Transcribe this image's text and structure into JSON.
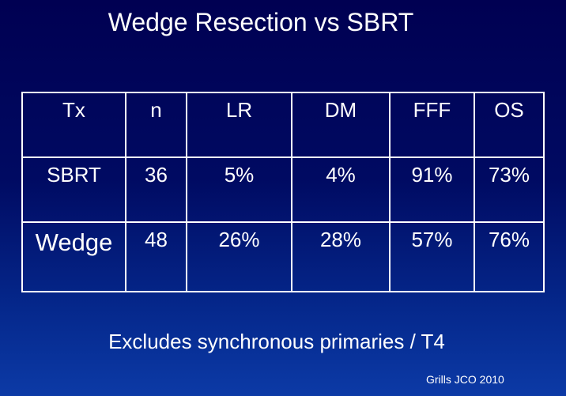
{
  "slide": {
    "title": "Wedge Resection vs SBRT",
    "footer_note": "Excludes synchronous primaries / T4",
    "citation": "Grills JCO 2010"
  },
  "table": {
    "headers": [
      "Tx",
      "n",
      "LR",
      "DM",
      "FFF",
      "OS"
    ],
    "rows": [
      [
        "SBRT",
        "36",
        "5%",
        "4%",
        "91%",
        "73%"
      ],
      [
        "Wedge",
        "48",
        "26%",
        "28%",
        "57%",
        "76%"
      ]
    ]
  },
  "colors": {
    "background_top": "#000052",
    "background_bottom": "#0c3aa6",
    "text": "#ffffff",
    "table_lines": "#ffffff"
  }
}
